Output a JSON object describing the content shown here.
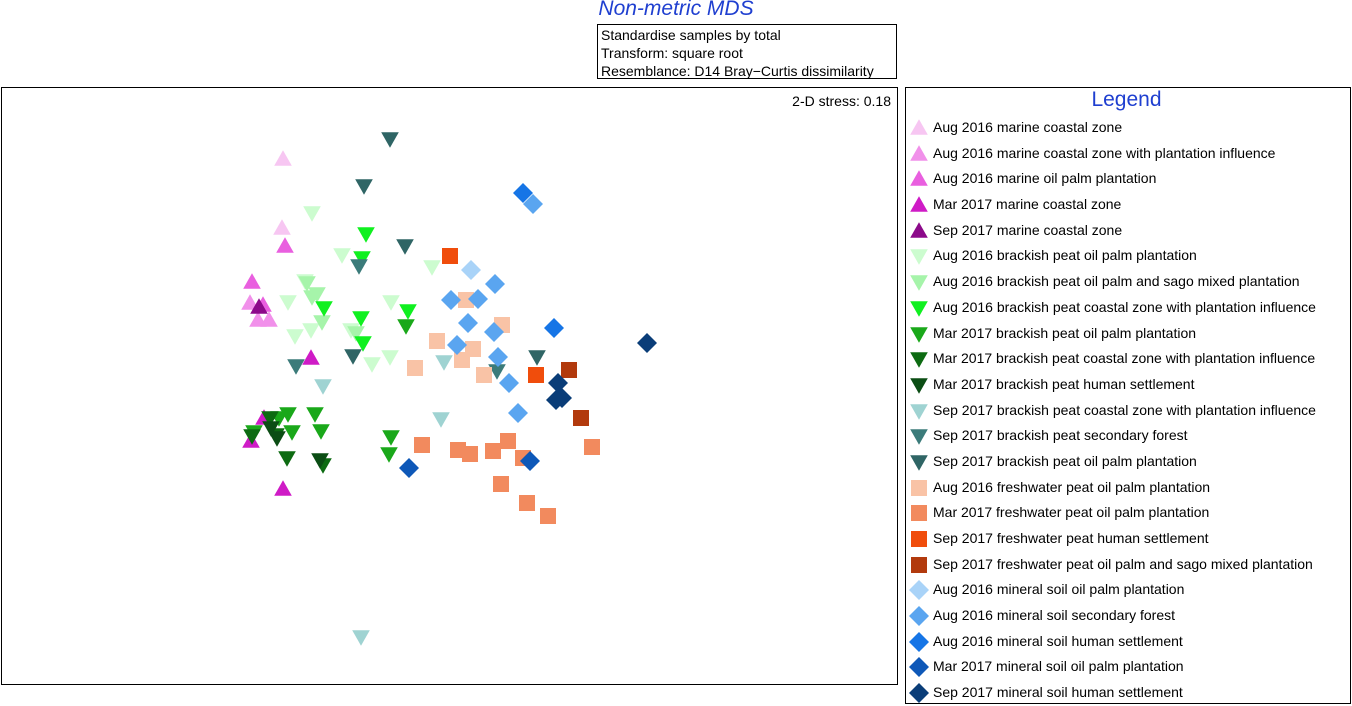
{
  "title": "Non-metric MDS",
  "info_lines": [
    "Standardise samples by total",
    "Transform: square root",
    "Resemblance: D14 Bray−Curtis dissimilarity"
  ],
  "stress_text": "2-D stress: 0.18",
  "legend_title": "Legend",
  "chart_data": {
    "type": "scatter",
    "title": "Non-metric MDS",
    "axes_visible": false,
    "legend_placement": "right",
    "series": [
      {
        "name": "Aug 2016 marine coastal zone",
        "marker": "triangle-up",
        "color": "#f7c6f2",
        "points": [
          [
            283,
            159
          ],
          [
            282,
            228
          ]
        ]
      },
      {
        "name": "Aug 2016 marine coastal zone with plantation influence",
        "marker": "triangle-up",
        "color": "#f190ea",
        "points": [
          [
            269,
            320
          ],
          [
            258,
            320
          ],
          [
            250,
            303
          ]
        ]
      },
      {
        "name": "Aug 2016 marine oil palm plantation",
        "marker": "triangle-up",
        "color": "#e95fdf",
        "points": [
          [
            285,
            246
          ],
          [
            252,
            282
          ],
          [
            263,
            305
          ]
        ]
      },
      {
        "name": "Mar 2017 marine coastal zone",
        "marker": "triangle-up",
        "color": "#cf1bc6",
        "points": [
          [
            311,
            358
          ],
          [
            264,
            418
          ],
          [
            251,
            441
          ],
          [
            283,
            489
          ]
        ]
      },
      {
        "name": "Sep 2017 marine coastal zone",
        "marker": "triangle-up",
        "color": "#8c0a8a",
        "points": [
          [
            259,
            307
          ]
        ]
      },
      {
        "name": "Aug 2016 brackish peat oil palm plantation",
        "marker": "triangle-down",
        "color": "#ccfccf",
        "points": [
          [
            312,
            213
          ],
          [
            342,
            255
          ],
          [
            288,
            302
          ],
          [
            295,
            336
          ],
          [
            311,
            330
          ],
          [
            372,
            364
          ],
          [
            390,
            357
          ],
          [
            432,
            267
          ],
          [
            391,
            302
          ],
          [
            351,
            330
          ],
          [
            305,
            281
          ]
        ]
      },
      {
        "name": "Aug 2016 brackish peat oil palm and sago mixed plantation",
        "marker": "triangle-down",
        "color": "#a6f4aa",
        "points": [
          [
            307,
            283
          ],
          [
            312,
            297
          ],
          [
            322,
            322
          ],
          [
            317,
            294
          ],
          [
            356,
            333
          ]
        ]
      },
      {
        "name": "Aug 2016 brackish peat coastal zone with plantation influence",
        "marker": "triangle-down",
        "color": "#10f020",
        "points": [
          [
            366,
            234
          ],
          [
            324,
            308
          ],
          [
            362,
            258
          ],
          [
            408,
            311
          ],
          [
            361,
            318
          ],
          [
            363,
            343
          ]
        ]
      },
      {
        "name": "Mar 2017 brackish peat oil palm plantation",
        "marker": "triangle-down",
        "color": "#1aa81a",
        "points": [
          [
            406,
            326
          ],
          [
            391,
            437
          ],
          [
            389,
            454
          ],
          [
            321,
            431
          ],
          [
            315,
            414
          ],
          [
            254,
            432
          ],
          [
            279,
            418
          ],
          [
            288,
            414
          ],
          [
            292,
            432
          ]
        ]
      },
      {
        "name": "Mar 2017 brackish peat coastal zone with plantation influence",
        "marker": "triangle-down",
        "color": "#0d6b12",
        "points": [
          [
            270,
            418
          ],
          [
            276,
            435
          ],
          [
            287,
            458
          ],
          [
            323,
            465
          ],
          [
            252,
            436
          ]
        ]
      },
      {
        "name": "Mar 2017 brackish peat human settlement",
        "marker": "triangle-down",
        "color": "#0b4d14",
        "points": [
          [
            277,
            438
          ],
          [
            320,
            460
          ],
          [
            271,
            428
          ]
        ]
      },
      {
        "name": "Sep 2017 brackish peat coastal zone with plantation influence",
        "marker": "triangle-down",
        "color": "#9fd3d2",
        "points": [
          [
            323,
            386
          ],
          [
            441,
            419
          ],
          [
            444,
            362
          ],
          [
            361,
            637
          ]
        ]
      },
      {
        "name": "Sep 2017 brackish peat secondary forest",
        "marker": "triangle-down",
        "color": "#3b7b7a",
        "points": [
          [
            296,
            366
          ],
          [
            359,
            266
          ],
          [
            497,
            371
          ]
        ]
      },
      {
        "name": "Sep 2017 brackish peat oil palm plantation",
        "marker": "triangle-down",
        "color": "#2f6565",
        "points": [
          [
            390,
            139
          ],
          [
            364,
            186
          ],
          [
            405,
            246
          ],
          [
            353,
            356
          ],
          [
            537,
            357
          ]
        ]
      },
      {
        "name": "Aug 2016 freshwater peat oil palm plantation",
        "marker": "square",
        "color": "#f9c3a6",
        "points": [
          [
            466,
            300
          ],
          [
            502,
            325
          ],
          [
            437,
            341
          ],
          [
            473,
            349
          ],
          [
            462,
            360
          ],
          [
            415,
            368
          ],
          [
            484,
            375
          ]
        ]
      },
      {
        "name": "Mar 2017 freshwater peat oil palm plantation",
        "marker": "square",
        "color": "#f28a5e",
        "points": [
          [
            422,
            445
          ],
          [
            458,
            450
          ],
          [
            470,
            454
          ],
          [
            493,
            451
          ],
          [
            508,
            441
          ],
          [
            523,
            458
          ],
          [
            592,
            447
          ],
          [
            501,
            484
          ],
          [
            527,
            503
          ],
          [
            548,
            516
          ]
        ]
      },
      {
        "name": "Sep 2017 freshwater peat human settlement",
        "marker": "square",
        "color": "#f04d0c",
        "points": [
          [
            450,
            256
          ],
          [
            536,
            375
          ]
        ]
      },
      {
        "name": "Sep 2017 freshwater peat oil palm and sago mixed plantation",
        "marker": "square",
        "color": "#b23a0d",
        "points": [
          [
            569,
            370
          ],
          [
            581,
            418
          ]
        ]
      },
      {
        "name": "Aug 2016 mineral soil oil palm plantation",
        "marker": "diamond",
        "color": "#a9d3f8",
        "points": [
          [
            471,
            270
          ]
        ]
      },
      {
        "name": "Aug 2016 mineral soil secondary forest",
        "marker": "diamond",
        "color": "#5aa5f0",
        "points": [
          [
            533,
            204
          ],
          [
            495,
            284
          ],
          [
            451,
            300
          ],
          [
            478,
            299
          ],
          [
            468,
            323
          ],
          [
            494,
            332
          ],
          [
            457,
            345
          ],
          [
            498,
            357
          ],
          [
            509,
            383
          ],
          [
            518,
            413
          ]
        ]
      },
      {
        "name": "Aug 2016 mineral soil human settlement",
        "marker": "diamond",
        "color": "#1675e6",
        "points": [
          [
            523,
            193
          ],
          [
            554,
            328
          ]
        ]
      },
      {
        "name": "Mar 2017 mineral soil oil palm plantation",
        "marker": "diamond",
        "color": "#0e58b8",
        "points": [
          [
            409,
            468
          ],
          [
            530,
            461
          ]
        ]
      },
      {
        "name": "Sep 2017 mineral soil human settlement",
        "marker": "diamond",
        "color": "#0a3d78",
        "points": [
          [
            647,
            343
          ],
          [
            558,
            383
          ],
          [
            562,
            398
          ],
          [
            556,
            400
          ]
        ]
      }
    ]
  }
}
